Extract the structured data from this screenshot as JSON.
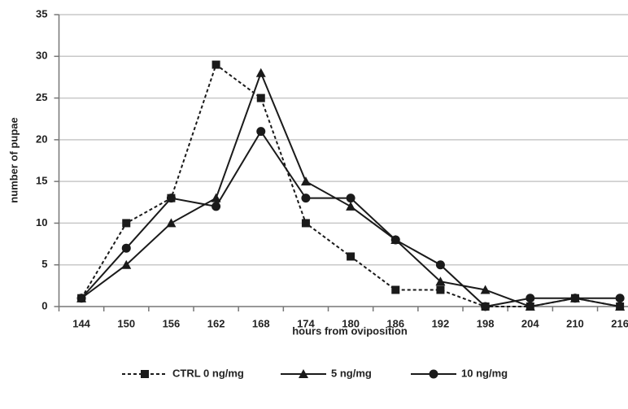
{
  "chart_data": {
    "type": "line",
    "x_label": "hours from oviposition",
    "y_label": "number of pupae",
    "categories": [
      "144",
      "150",
      "156",
      "162",
      "168",
      "174",
      "180",
      "186",
      "192",
      "198",
      "204",
      "210",
      "216"
    ],
    "series": [
      {
        "name": "CTRL 0 ng/mg",
        "color": "#1a1a1a",
        "marker": "square",
        "dashed": true,
        "values": [
          1,
          10,
          13,
          29,
          25,
          10,
          6,
          2,
          2,
          0,
          0,
          1,
          0
        ]
      },
      {
        "name": "5 ng/mg",
        "color": "#1a1a1a",
        "marker": "triangle",
        "dashed": false,
        "values": [
          1,
          5,
          10,
          13,
          28,
          15,
          12,
          8,
          3,
          2,
          0,
          1,
          0
        ]
      },
      {
        "name": "10 ng/mg",
        "color": "#1a1a1a",
        "marker": "circle",
        "dashed": false,
        "values": [
          1,
          7,
          13,
          12,
          21,
          13,
          13,
          8,
          5,
          0,
          1,
          1,
          1
        ]
      }
    ],
    "ylim": [
      0,
      35
    ],
    "yticks": [
      0,
      5,
      10,
      15,
      20,
      25,
      30,
      35
    ],
    "grid": true,
    "legend": "bottom"
  }
}
